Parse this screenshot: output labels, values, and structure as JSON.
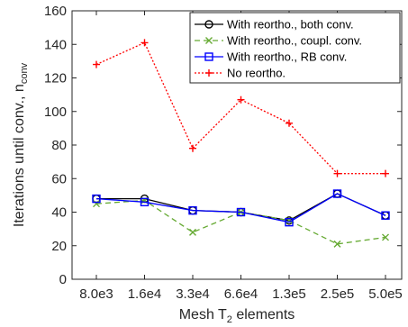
{
  "chart_data": {
    "type": "line",
    "categories": [
      "8.0e3",
      "1.6e4",
      "3.3e4",
      "6.6e4",
      "1.3e5",
      "2.5e5",
      "5.0e5"
    ],
    "xlabel": {
      "main": "Mesh T",
      "sub": "2",
      "tail": " elements"
    },
    "ylabel": {
      "main": "Iterations until conv., n",
      "sub": "conv"
    },
    "ylim": [
      0,
      160
    ],
    "yticks": [
      0,
      20,
      40,
      60,
      80,
      100,
      120,
      140,
      160
    ],
    "legend_position": "top-right",
    "series": [
      {
        "name": "With reortho., both conv.",
        "color": "#000000",
        "dash": "",
        "marker": "circle",
        "values": [
          48,
          48,
          41,
          40,
          35,
          51,
          38
        ]
      },
      {
        "name": "With reortho., coupl. conv.",
        "color": "#66aa33",
        "dash": "6,4",
        "marker": "x",
        "values": [
          45,
          47,
          28,
          40,
          35,
          21,
          25
        ]
      },
      {
        "name": "With reortho., RB conv.",
        "color": "#0000ff",
        "dash": "",
        "marker": "square",
        "values": [
          48,
          46,
          41,
          40,
          34,
          51,
          38
        ]
      },
      {
        "name": "No reortho.",
        "color": "#ff0000",
        "dash": "2,2",
        "marker": "plus",
        "values": [
          128,
          141,
          78,
          107,
          93,
          63,
          63
        ]
      }
    ]
  }
}
